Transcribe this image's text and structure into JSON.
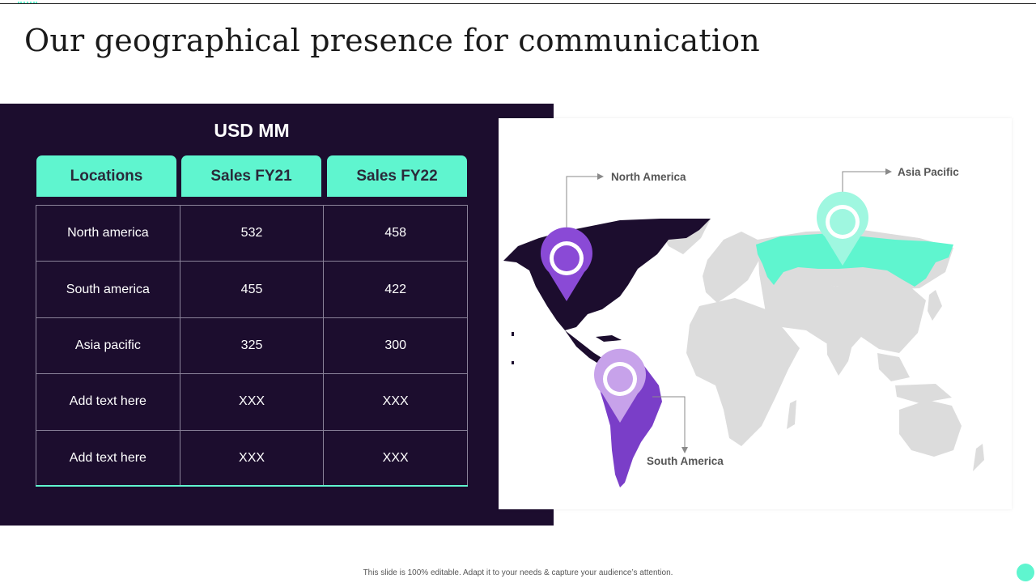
{
  "slide": {
    "title": "Our geographical presence for communication",
    "footer": "This slide is 100% editable. Adapt it to your needs & capture your audience’s attention."
  },
  "table": {
    "heading": "USD MM",
    "columns": [
      "Locations",
      "Sales FY21",
      "Sales FY22"
    ],
    "rows": [
      [
        "North america",
        "532",
        "458"
      ],
      [
        "South america",
        "455",
        "422"
      ],
      [
        "Asia pacific",
        "325",
        "300"
      ],
      [
        "Add text here",
        "XXX",
        "XXX"
      ],
      [
        "Add text here",
        "XXX",
        "XXX"
      ]
    ]
  },
  "map": {
    "labels": {
      "north_america": "North America",
      "asia_pacific": "Asia Pacific",
      "south_america": "South America"
    },
    "colors": {
      "north_america": "#1c0d2e",
      "south_america": "#7a3ec8",
      "asia_pacific": "#5ff5cf",
      "land": "#dcdcdc",
      "pin_north_america": "#8a4ad6",
      "pin_south_america": "#c7a2ea",
      "pin_asia_pacific": "#9ff7e0"
    }
  },
  "colors": {
    "panel": "#1c0d2e",
    "accent": "#5ff5cf"
  }
}
